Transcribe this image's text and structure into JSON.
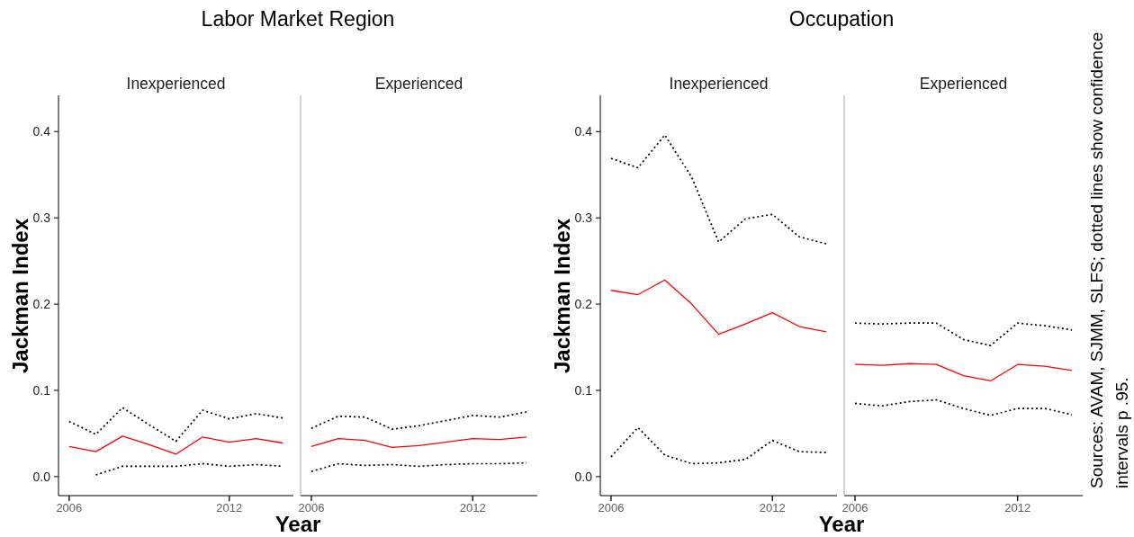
{
  "chart_data": [
    {
      "type": "line",
      "title": "Labor Market Region",
      "subtitle": "Inexperienced",
      "xlabel": "Year",
      "ylabel": "Jackman Index",
      "x": [
        "2006",
        "2007",
        "2008",
        "2009",
        "2010",
        "2011",
        "2012",
        "2013",
        "2014"
      ],
      "xlim": [
        "2005-08-08",
        "2014-05-27"
      ],
      "xticks": [
        "2006",
        "2012"
      ],
      "ylim": [
        -0.022,
        0.442
      ],
      "yticks": [
        {
          "value": 0,
          "label": "0.0"
        },
        0.1,
        0.2,
        0.3,
        0.4
      ],
      "series": [
        {
          "color": "#000000",
          "line_style": "dotted",
          "values": [
            0.064,
            0.049,
            0.08,
            0.06,
            0.041,
            0.077,
            0.067,
            0.073,
            0.068
          ]
        },
        {
          "color": "#ff0000",
          "line_style": "solid",
          "values": [
            0.035,
            0.029,
            0.047,
            0.037,
            0.026,
            0.046,
            0.04,
            0.044,
            0.039
          ]
        },
        {
          "color": "#000000",
          "line_style": "dotted",
          "values": [
            null,
            0.002,
            0.012,
            0.012,
            0.012,
            0.015,
            0.012,
            0.014,
            0.012
          ]
        }
      ]
    },
    {
      "type": "line",
      "subtitle": "Experienced",
      "x": [
        "2006",
        "2007",
        "2008",
        "2009",
        "2010",
        "2011",
        "2012",
        "2013",
        "2014"
      ],
      "xlim": [
        "2005-08-08",
        "2014-05-27"
      ],
      "xticks": [
        "2006",
        "2012"
      ],
      "ylim": [
        -0.022,
        0.442
      ],
      "tick_labels": "x",
      "series": [
        {
          "color": "#000000",
          "line_style": "dotted",
          "values": [
            0.056,
            0.07,
            0.069,
            0.055,
            0.059,
            0.065,
            0.071,
            0.069,
            0.075
          ]
        },
        {
          "color": "#ff0000",
          "line_style": "solid",
          "values": [
            0.035,
            0.044,
            0.042,
            0.034,
            0.036,
            0.04,
            0.044,
            0.043,
            0.046
          ]
        },
        {
          "color": "#000000",
          "line_style": "dotted",
          "values": [
            0.006,
            0.015,
            0.013,
            0.014,
            0.012,
            0.014,
            0.015,
            0.015,
            0.016
          ]
        }
      ]
    },
    {
      "type": "line",
      "title": "Occupation",
      "subtitle": "Inexperienced",
      "xlabel": "Year",
      "ylabel": "Jackman Index",
      "x": [
        "2006",
        "2007",
        "2008",
        "2009",
        "2010",
        "2011",
        "2012",
        "2013",
        "2014"
      ],
      "xlim": [
        "2005-08-08",
        "2014-05-27"
      ],
      "xticks": [
        "2006",
        "2012"
      ],
      "ylim": [
        -0.022,
        0.442
      ],
      "yticks": [
        {
          "value": 0,
          "label": "0.0"
        },
        0.1,
        0.2,
        0.3,
        0.4
      ],
      "series": [
        {
          "color": "#000000",
          "line_style": "dotted",
          "values": [
            0.369,
            0.358,
            0.396,
            0.347,
            0.272,
            0.299,
            0.304,
            0.278,
            0.27
          ]
        },
        {
          "color": "#ff0000",
          "line_style": "solid",
          "values": [
            0.216,
            0.211,
            0.228,
            0.2,
            0.165,
            0.177,
            0.19,
            0.174,
            0.168
          ]
        },
        {
          "color": "#000000",
          "line_style": "dotted",
          "values": [
            0.023,
            0.057,
            0.025,
            0.015,
            0.016,
            0.02,
            0.042,
            0.029,
            0.028
          ]
        }
      ]
    },
    {
      "type": "line",
      "subtitle": "Experienced",
      "x": [
        "2006",
        "2007",
        "2008",
        "2009",
        "2010",
        "2011",
        "2012",
        "2013",
        "2014"
      ],
      "xlim": [
        "2005-08-08",
        "2014-05-27"
      ],
      "xticks": [
        "2006",
        "2012"
      ],
      "ylim": [
        -0.022,
        0.442
      ],
      "tick_labels": "x",
      "annotations": [
        "Sources: AVAM, SJMM, SLFS; dotted lines show confidence intervals p .95."
      ],
      "series": [
        {
          "color": "#000000",
          "line_style": "dotted",
          "values": [
            0.178,
            0.177,
            0.178,
            0.178,
            0.159,
            0.152,
            0.178,
            0.175,
            0.17
          ]
        },
        {
          "color": "#ff0000",
          "line_style": "solid",
          "values": [
            0.13,
            0.129,
            0.131,
            0.13,
            0.117,
            0.111,
            0.13,
            0.128,
            0.123
          ]
        },
        {
          "color": "#000000",
          "line_style": "dotted",
          "values": [
            0.085,
            0.082,
            0.087,
            0.089,
            0.079,
            0.071,
            0.079,
            0.079,
            0.072
          ]
        }
      ]
    }
  ]
}
